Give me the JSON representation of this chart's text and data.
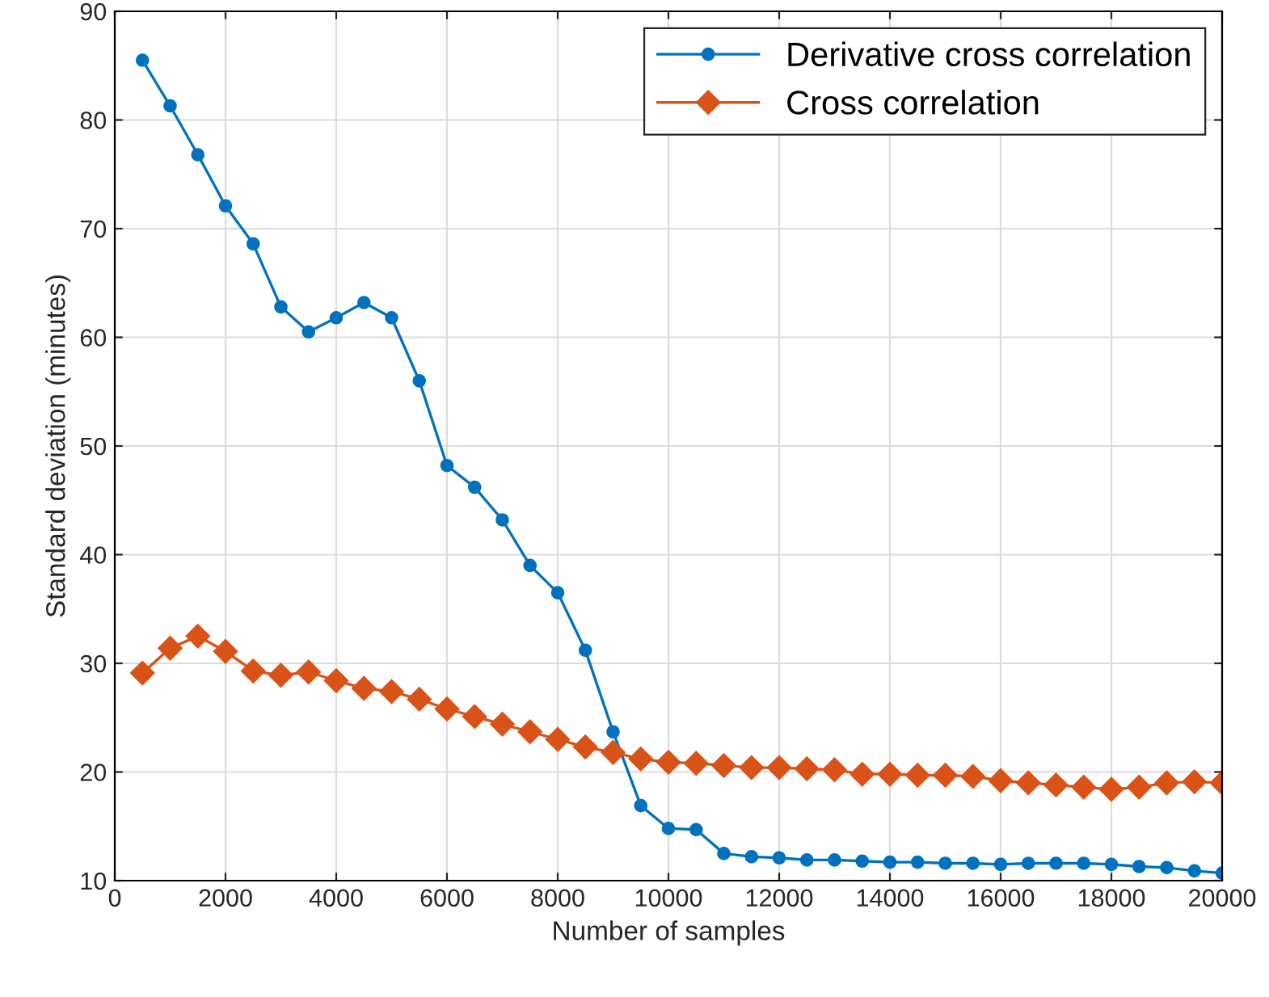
{
  "chart_data": {
    "type": "line",
    "xlabel": "Number of samples",
    "ylabel": "Standard deviation (minutes)",
    "x": [
      500,
      1000,
      1500,
      2000,
      2500,
      3000,
      3500,
      4000,
      4500,
      5000,
      5500,
      6000,
      6500,
      7000,
      7500,
      8000,
      8500,
      9000,
      9500,
      10000,
      10500,
      11000,
      11500,
      12000,
      12500,
      13000,
      13500,
      14000,
      14500,
      15000,
      15500,
      16000,
      16500,
      17000,
      17500,
      18000,
      18500,
      19000,
      19500,
      20000
    ],
    "series": [
      {
        "name": "Derivative cross correlation",
        "color": "#0072bd",
        "marker": "circle",
        "values": [
          85.5,
          81.3,
          76.8,
          72.1,
          68.6,
          62.8,
          60.5,
          61.8,
          63.2,
          61.8,
          56,
          48.2,
          46.2,
          43.2,
          39,
          36.5,
          31.2,
          23.7,
          16.9,
          14.8,
          14.7,
          12.5,
          12.2,
          12.1,
          11.9,
          11.9,
          11.8,
          11.7,
          11.7,
          11.6,
          11.6,
          11.5,
          11.6,
          11.6,
          11.6,
          11.5,
          11.3,
          11.2,
          10.9,
          10.7
        ]
      },
      {
        "name": "Cross correlation",
        "color": "#d95319",
        "marker": "diamond",
        "values": [
          29.1,
          31.4,
          32.5,
          31.1,
          29.3,
          28.9,
          29.2,
          28.4,
          27.7,
          27.4,
          26.7,
          25.8,
          25.1,
          24.4,
          23.7,
          23.0,
          22.3,
          21.8,
          21.2,
          20.9,
          20.8,
          20.6,
          20.4,
          20.4,
          20.3,
          20.2,
          19.8,
          19.8,
          19.7,
          19.7,
          19.6,
          19.2,
          19.0,
          18.8,
          18.6,
          18.4,
          18.6,
          19.0,
          19.1,
          19.0
        ]
      }
    ],
    "xlim": [
      0,
      20000
    ],
    "ylim": [
      10,
      90
    ],
    "xticks": [
      0,
      2000,
      4000,
      6000,
      8000,
      10000,
      12000,
      14000,
      16000,
      18000,
      20000
    ],
    "yticks": [
      10,
      20,
      30,
      40,
      50,
      60,
      70,
      80,
      90
    ],
    "grid": true,
    "legend": "top right",
    "line_style": "solid"
  }
}
